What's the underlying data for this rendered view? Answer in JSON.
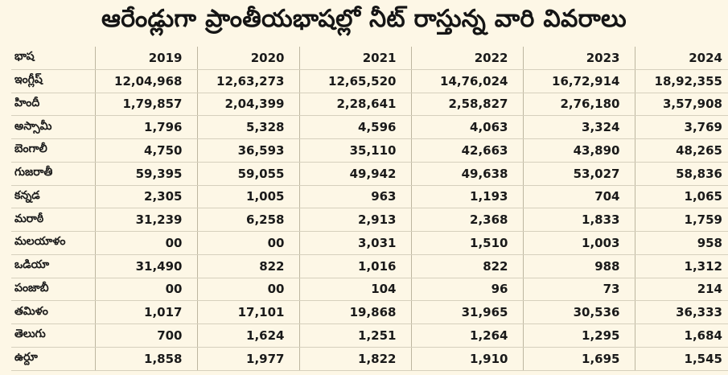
{
  "title": "ఆరేండ్లుగా ప్రాంతీయభాషల్లో నీట్ రాస్తున్న వారి వివరాలు",
  "table": {
    "header": [
      "భాష",
      "2019",
      "2020",
      "2021",
      "2022",
      "2023",
      "2024"
    ],
    "rows": [
      [
        "ఇంగ్లీష్",
        "12,04,968",
        "12,63,273",
        "12,65,520",
        "14,76,024",
        "16,72,914",
        "18,92,355"
      ],
      [
        "హిందీ",
        "1,79,857",
        "2,04,399",
        "2,28,641",
        "2,58,827",
        "2,76,180",
        "3,57,908"
      ],
      [
        "అస్సామీ",
        "1,796",
        "5,328",
        "4,596",
        "4,063",
        "3,324",
        "3,769"
      ],
      [
        "బెంగాలీ",
        "4,750",
        "36,593",
        "35,110",
        "42,663",
        "43,890",
        "48,265"
      ],
      [
        "గుజరాతీ",
        "59,395",
        "59,055",
        "49,942",
        "49,638",
        "53,027",
        "58,836"
      ],
      [
        "కన్నడ",
        "2,305",
        "1,005",
        "963",
        "1,193",
        "704",
        "1,065"
      ],
      [
        "మరాఠీ",
        "31,239",
        "6,258",
        "2,913",
        "2,368",
        "1,833",
        "1,759"
      ],
      [
        "మలయాళం",
        "00",
        "00",
        "3,031",
        "1,510",
        "1,003",
        "958"
      ],
      [
        "ఒడియా",
        "31,490",
        "822",
        "1,016",
        "822",
        "988",
        "1,312"
      ],
      [
        "పంజాబీ",
        "00",
        "00",
        "104",
        "96",
        "73",
        "214"
      ],
      [
        "తమిళం",
        "1,017",
        "17,101",
        "19,868",
        "31,965",
        "30,536",
        "36,333"
      ],
      [
        "తెలుగు",
        "700",
        "1,624",
        "1,251",
        "1,264",
        "1,295",
        "1,684"
      ],
      [
        "ఉర్దూ",
        "1,858",
        "1,977",
        "1,822",
        "1,910",
        "1,695",
        "1,545"
      ]
    ]
  }
}
